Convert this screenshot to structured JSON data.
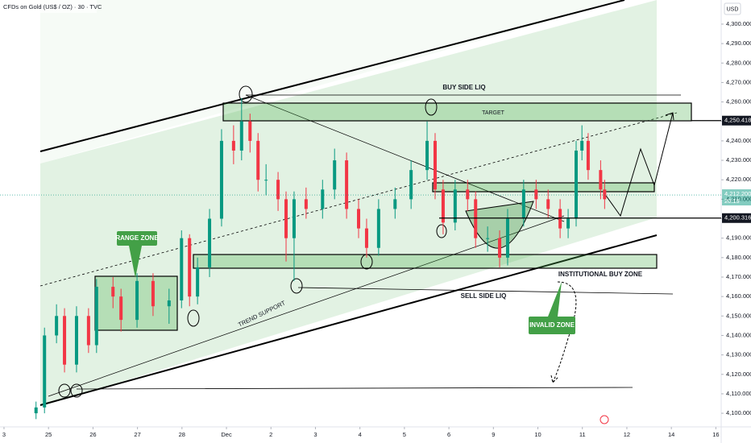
{
  "chart_data": {
    "type": "candlestick",
    "title": "CFDs on Gold (US$ / OZ) · 30 · TVC",
    "currency": "USD",
    "x": [
      0.72,
      0.91,
      1.18,
      1.36,
      1.63,
      1.9,
      2.08,
      2.45,
      2.63,
      2.99,
      3.35,
      3.71,
      3.99,
      4.17,
      4.35,
      4.62,
      4.89,
      5.16,
      5.34,
      5.53,
      5.71,
      5.89,
      6.16,
      6.34,
      6.52,
      6.79,
      7.16,
      7.43,
      7.7,
      7.97,
      8.15,
      8.42,
      8.79,
      9.15,
      9.51,
      9.69,
      9.87,
      10.14,
      10.42,
      10.6,
      10.87,
      11.14,
      11.32,
      11.68,
      11.96,
      12.23,
      12.5,
      12.68,
      12.86,
      12.99,
      13.13,
      13.41,
      13.5
    ],
    "open": [
      4100,
      4103,
      4140,
      4150,
      4125,
      4150,
      4135,
      4165,
      4160,
      4148,
      4168,
      4155,
      4158,
      4190,
      4160,
      4175,
      4200,
      4240,
      4235,
      4250,
      4240,
      4220,
      4220,
      4210,
      4190,
      4210,
      4205,
      4215,
      4230,
      4205,
      4195,
      4185,
      4205,
      4210,
      4225,
      4240,
      4215,
      4198,
      4215,
      4210,
      4190,
      4190,
      4180,
      4200,
      4215,
      4210,
      4205,
      4195,
      4200,
      4235,
      4240,
      4225,
      4215
    ],
    "high": [
      4106,
      4144,
      4156,
      4154,
      4155,
      4154,
      4169,
      4170,
      4164,
      4172,
      4172,
      4164,
      4194,
      4192,
      4180,
      4205,
      4246,
      4248,
      4262,
      4254,
      4244,
      4228,
      4224,
      4214,
      4214,
      4216,
      4220,
      4236,
      4234,
      4210,
      4200,
      4210,
      4216,
      4230,
      4250,
      4244,
      4220,
      4220,
      4220,
      4214,
      4196,
      4194,
      4205,
      4220,
      4220,
      4215,
      4210,
      4205,
      4240,
      4248,
      4244,
      4230,
      4220
    ],
    "low": [
      4097,
      4100,
      4136,
      4121,
      4121,
      4131,
      4131,
      4154,
      4142,
      4144,
      4150,
      4146,
      4154,
      4155,
      4156,
      4170,
      4196,
      4228,
      4230,
      4234,
      4214,
      4212,
      4204,
      4178,
      4168,
      4200,
      4200,
      4210,
      4200,
      4190,
      4180,
      4181,
      4200,
      4205,
      4220,
      4210,
      4192,
      4194,
      4204,
      4185,
      4183,
      4175,
      4176,
      4196,
      4205,
      4200,
      4190,
      4190,
      4196,
      4230,
      4220,
      4210,
      4205
    ],
    "close": [
      4103,
      4140,
      4150,
      4125,
      4150,
      4135,
      4165,
      4160,
      4148,
      4168,
      4155,
      4158,
      4190,
      4160,
      4175,
      4200,
      4240,
      4235,
      4250,
      4240,
      4220,
      4220,
      4210,
      4190,
      4210,
      4205,
      4215,
      4230,
      4205,
      4195,
      4185,
      4205,
      4210,
      4225,
      4240,
      4215,
      4198,
      4215,
      4210,
      4190,
      4190,
      4180,
      4200,
      4215,
      4210,
      4205,
      4195,
      4200,
      4235,
      4240,
      4225,
      4215,
      4210
    ],
    "up_color": "#089981",
    "down_color": "#f23645",
    "xlim": [
      -0.09,
      16.12
    ],
    "xticks": [
      {
        "value": 0,
        "label": "3"
      },
      {
        "value": 1,
        "label": "25"
      },
      {
        "value": 2,
        "label": "26"
      },
      {
        "value": 3,
        "label": "27"
      },
      {
        "value": 4,
        "label": "28"
      },
      {
        "value": 5,
        "label": "Dec"
      },
      {
        "value": 6,
        "label": "2"
      },
      {
        "value": 7,
        "label": "3"
      },
      {
        "value": 8,
        "label": "4"
      },
      {
        "value": 9,
        "label": "5"
      },
      {
        "value": 10,
        "label": "6"
      },
      {
        "value": 11,
        "label": "9"
      },
      {
        "value": 12,
        "label": "10"
      },
      {
        "value": 13,
        "label": "11"
      },
      {
        "value": 14,
        "label": "12"
      },
      {
        "value": 15,
        "label": "14"
      },
      {
        "value": 16,
        "label": "16"
      }
    ],
    "ylim": [
      4093,
      4312.4
    ],
    "yticks": [
      {
        "value": 4100,
        "label": "4,100.000"
      },
      {
        "value": 4110,
        "label": "4,110.000"
      },
      {
        "value": 4120,
        "label": "4,120.000"
      },
      {
        "value": 4130,
        "label": "4,130.000"
      },
      {
        "value": 4140,
        "label": "4,140.000"
      },
      {
        "value": 4150,
        "label": "4,150.000"
      },
      {
        "value": 4160,
        "label": "4,160.000"
      },
      {
        "value": 4170,
        "label": "4,170.000"
      },
      {
        "value": 4180,
        "label": "4,180.000"
      },
      {
        "value": 4190,
        "label": "4,190.000"
      },
      {
        "value": 4200,
        "label": "4,200.000"
      },
      {
        "value": 4210,
        "label": "4,210.000"
      },
      {
        "value": 4220,
        "label": "4,220.000"
      },
      {
        "value": 4230,
        "label": "4,230.000"
      },
      {
        "value": 4240,
        "label": "4,240.000"
      },
      {
        "value": 4250,
        "label": "4,250.000"
      },
      {
        "value": 4260,
        "label": "4,260.000"
      },
      {
        "value": 4270,
        "label": "4,270.000"
      },
      {
        "value": 4280,
        "label": "4,280.000"
      },
      {
        "value": 4290,
        "label": "4,290.000"
      },
      {
        "value": 4300,
        "label": "4,300.000"
      }
    ],
    "price_lines": [
      {
        "value": 4250.418,
        "label": "4,250.418"
      },
      {
        "value": 4200.316,
        "label": "4,200.316"
      }
    ],
    "last_price": {
      "value": 4212.2,
      "label": "4,212.200"
    },
    "countdown": "20:19",
    "annotations": [
      "BUY SIDE LIQ",
      "TARGET",
      "RANGE ZONE",
      "TREND SUPPORT",
      "INSTITUTIONAL BUY ZONE",
      "SELL SIDE LIQ",
      "INVALID ZONE"
    ]
  }
}
